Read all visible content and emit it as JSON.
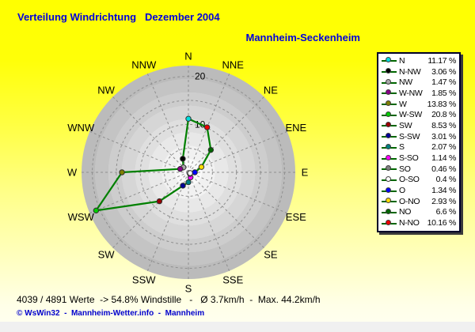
{
  "title": "Verteilung Windrichtung   Dezember 2004",
  "subtitle": "Mannheim-Seckenheim",
  "footer": {
    "stats": "4039 / 4891 Werte  -> 54.8% Windstille   -   Ø 3.7km/h  -  Max. 44.2km/h",
    "copyright": "© WsWin32  -  Mannheim-Wetter.info  -  Mannheim"
  },
  "colors": {
    "title_blue": "#0000dd",
    "copyright_blue": "#0000cc",
    "polyline_green": "#008000",
    "legend_line_green": "#006600",
    "grid_gray": "#8f8f8f",
    "background_yellow": "#ffff00"
  },
  "chart_data": {
    "type": "line",
    "subtype": "windrose-radar",
    "title": "Verteilung Windrichtung Dezember 2004",
    "station": "Mannheim-Seckenheim",
    "units": "%",
    "compass_labels": [
      "N",
      "NNE",
      "NE",
      "ENE",
      "E",
      "ESE",
      "SE",
      "SSE",
      "S",
      "SSW",
      "SW",
      "WSW",
      "W",
      "WNW",
      "NW",
      "NNW"
    ],
    "grid_circles": [
      5,
      10,
      15,
      20
    ],
    "radial_ticks": [
      10,
      20
    ],
    "rmax": 22.2,
    "legend_position": "right",
    "series": [
      {
        "label": "N",
        "pct": "11.17 %",
        "value": 11.17,
        "angle": 0,
        "color": "#00dddd"
      },
      {
        "label": "N-NW",
        "pct": "3.06 %",
        "value": 3.06,
        "angle": 337.5,
        "color": "#000000"
      },
      {
        "label": "NW",
        "pct": "1.47 %",
        "value": 1.47,
        "angle": 315,
        "color": "#aaaaaa"
      },
      {
        "label": "W-NW",
        "pct": "1.85 %",
        "value": 1.85,
        "angle": 292.5,
        "color": "#880088"
      },
      {
        "label": "W",
        "pct": "13.83 %",
        "value": 13.83,
        "angle": 270,
        "color": "#808000"
      },
      {
        "label": "W-SW",
        "pct": "20.8 %",
        "value": 20.8,
        "angle": 247.5,
        "color": "#00cc00"
      },
      {
        "label": "SW",
        "pct": "8.53 %",
        "value": 8.53,
        "angle": 225,
        "color": "#990000"
      },
      {
        "label": "S-SW",
        "pct": "3.01 %",
        "value": 3.01,
        "angle": 202.5,
        "color": "#000099"
      },
      {
        "label": "S",
        "pct": "2.07 %",
        "value": 2.07,
        "angle": 180,
        "color": "#008080"
      },
      {
        "label": "S-SO",
        "pct": "1.14 %",
        "value": 1.14,
        "angle": 157.5,
        "color": "#ff00ff"
      },
      {
        "label": "SO",
        "pct": "0.46 %",
        "value": 0.46,
        "angle": 135,
        "color": "#808080"
      },
      {
        "label": "O-SO",
        "pct": "0.4 %",
        "value": 0.4,
        "angle": 112.5,
        "color": "#ffffff"
      },
      {
        "label": "O",
        "pct": "1.34 %",
        "value": 1.34,
        "angle": 90,
        "color": "#0000ff"
      },
      {
        "label": "O-NO",
        "pct": "2.93 %",
        "value": 2.93,
        "angle": 67.5,
        "color": "#ffdd00"
      },
      {
        "label": "NO",
        "pct": "6.6 %",
        "value": 6.6,
        "angle": 45,
        "color": "#006600"
      },
      {
        "label": "N-NO",
        "pct": "10.16 %",
        "value": 10.16,
        "angle": 22.5,
        "color": "#ee0000"
      }
    ]
  }
}
